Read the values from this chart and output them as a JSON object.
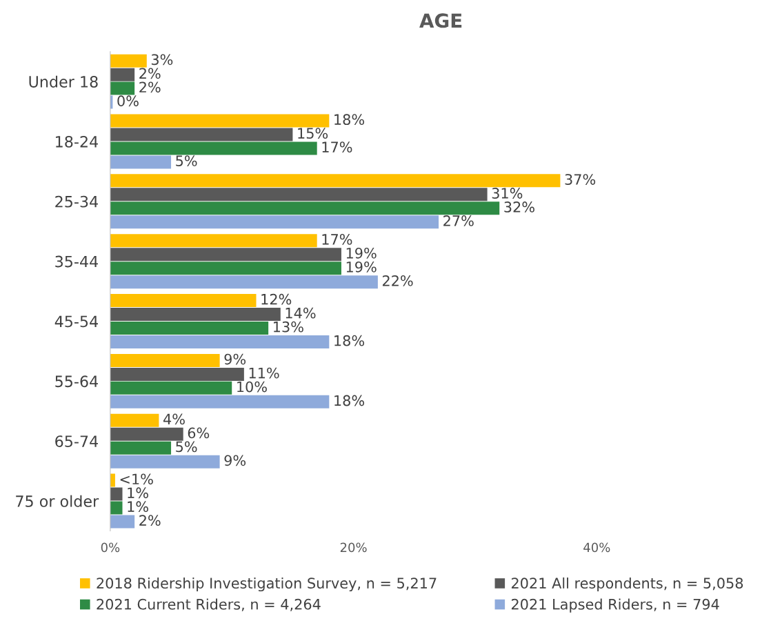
{
  "chart_data": {
    "type": "bar",
    "orientation": "horizontal",
    "title": "AGE",
    "categories": [
      "Under 18",
      "18-24",
      "25-34",
      "35-44",
      "45-54",
      "55-64",
      "65-74",
      "75 or older"
    ],
    "series": [
      {
        "name": "2018 Ridership Investigation Survey, n = 5,217",
        "color": "#ffc000",
        "values": [
          3,
          18,
          37,
          17,
          12,
          9,
          4,
          0.4
        ],
        "value_labels": [
          "3%",
          "18%",
          "37%",
          "17%",
          "12%",
          "9%",
          "4%",
          "<1%"
        ]
      },
      {
        "name": "2021 All respondents, n = 5,058",
        "color": "#595959",
        "values": [
          2,
          15,
          31,
          19,
          14,
          11,
          6,
          1
        ],
        "value_labels": [
          "2%",
          "15%",
          "31%",
          "19%",
          "14%",
          "11%",
          "6%",
          "1%"
        ]
      },
      {
        "name": "2021 Current Riders, n = 4,264",
        "color": "#2e8b45",
        "values": [
          2,
          17,
          32,
          19,
          13,
          10,
          5,
          1
        ],
        "value_labels": [
          "2%",
          "17%",
          "32%",
          "19%",
          "13%",
          "10%",
          "5%",
          "1%"
        ]
      },
      {
        "name": "2021 Lapsed Riders, n = 794",
        "color": "#8eaadb",
        "values": [
          0.2,
          5,
          27,
          22,
          18,
          18,
          9,
          2
        ],
        "value_labels": [
          "0%",
          "5%",
          "27%",
          "22%",
          "18%",
          "18%",
          "9%",
          "2%"
        ]
      }
    ],
    "xlim": [
      0,
      40
    ],
    "xticks": [
      {
        "value": 0,
        "label": "0%"
      },
      {
        "value": 20,
        "label": "20%"
      },
      {
        "value": 40,
        "label": "40%"
      }
    ],
    "grid": false,
    "legend": "bottom"
  }
}
